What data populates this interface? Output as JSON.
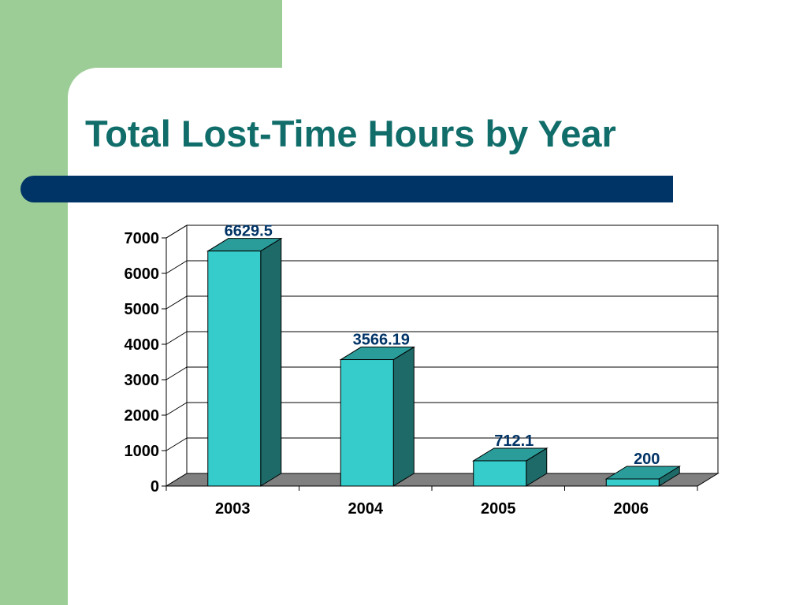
{
  "title": "Total Lost-Time Hours by Year",
  "colors": {
    "accent_green": "#9dcd97",
    "title_teal": "#106d6a",
    "bar_navy": "#003366",
    "bar_front": "#36cccc",
    "bar_top": "#2a9d9b",
    "bar_side": "#1d6a68",
    "floor": "#808080",
    "data_label": "#003366"
  },
  "chart_data": {
    "type": "bar",
    "title": "",
    "xlabel": "",
    "ylabel": "",
    "categories": [
      "2003",
      "2004",
      "2005",
      "2006"
    ],
    "values": [
      6629.5,
      3566.19,
      712.1,
      200
    ],
    "data_labels": [
      "6629.5",
      "3566.19",
      "712.1",
      "200"
    ],
    "yticks": [
      "0",
      "1000",
      "2000",
      "3000",
      "4000",
      "5000",
      "6000",
      "7000"
    ],
    "ylim": [
      0,
      7000
    ],
    "grid": true,
    "legend": "none",
    "style": "3d-column"
  }
}
